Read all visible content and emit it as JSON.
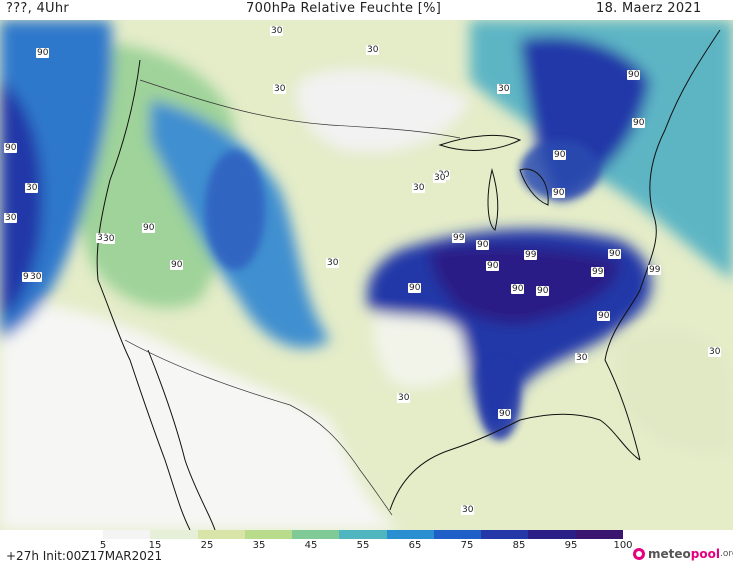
{
  "header": {
    "left": "???, 4Uhr",
    "title": "700hPa Relative Feuchte [%]",
    "date": "18. Maerz 2021"
  },
  "colors": {
    "scale": [
      "#f4f4f4",
      "#e6efd8",
      "#d8e4a8",
      "#b9db8c",
      "#7fca96",
      "#4fb6c0",
      "#2a8fd0",
      "#1f60c8",
      "#2438a8",
      "#2a1f86",
      "#3a1570"
    ]
  },
  "contour_labels": [
    {
      "v": "30"
    },
    {
      "v": "90"
    },
    {
      "v": "30"
    },
    {
      "v": "90"
    },
    {
      "v": "30"
    },
    {
      "v": "90"
    },
    {
      "v": "30"
    },
    {
      "v": "90"
    },
    {
      "v": "30"
    },
    {
      "v": "90"
    },
    {
      "v": "90"
    },
    {
      "v": "30"
    },
    {
      "v": "30"
    },
    {
      "v": "30"
    },
    {
      "v": "90"
    },
    {
      "v": "90"
    },
    {
      "v": "30"
    },
    {
      "v": "99"
    },
    {
      "v": "90"
    },
    {
      "v": "99"
    },
    {
      "v": "90"
    },
    {
      "v": "99"
    },
    {
      "v": "90"
    },
    {
      "v": "99"
    },
    {
      "v": "90"
    },
    {
      "v": "90"
    },
    {
      "v": "90"
    },
    {
      "v": "90"
    },
    {
      "v": "30"
    },
    {
      "v": "30"
    },
    {
      "v": "30"
    },
    {
      "v": "90"
    },
    {
      "v": "30"
    },
    {
      "v": "30"
    },
    {
      "v": "30"
    },
    {
      "v": "30"
    },
    {
      "v": "99"
    },
    {
      "v": "30"
    }
  ],
  "legend": {
    "ticks": [
      "5",
      "15",
      "25",
      "35",
      "45",
      "55",
      "65",
      "75",
      "85",
      "95",
      "100"
    ]
  },
  "footer": {
    "run": "+27h  Init:00Z17MAR2021"
  },
  "logo": {
    "name1": "meteo",
    "name2": "pool",
    "suffix": ".org"
  }
}
